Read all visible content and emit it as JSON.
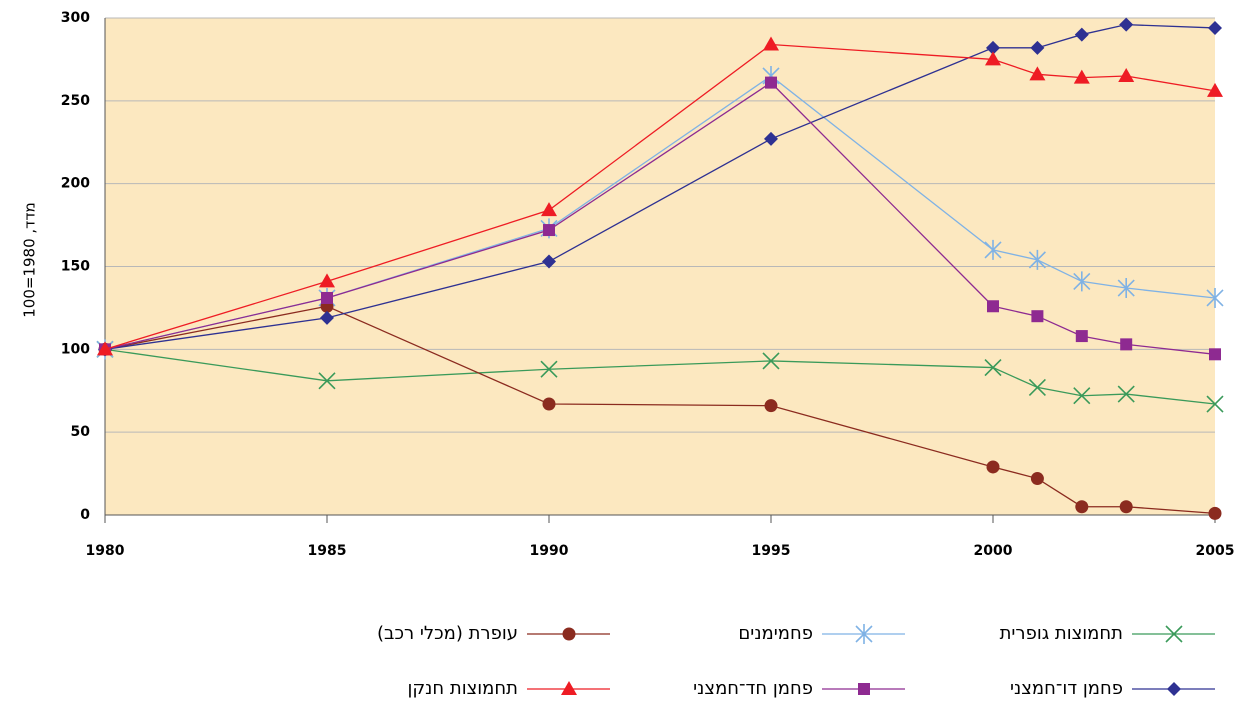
{
  "chart_data": {
    "type": "line",
    "y_label": "מדד, 1980=100",
    "x": [
      1980,
      1985,
      1990,
      1995,
      2000,
      2001,
      2002,
      2003,
      2005
    ],
    "xlim": [
      1980,
      2005
    ],
    "xticks": [
      1980,
      1985,
      1990,
      1995,
      2000,
      2005
    ],
    "ylim": [
      0,
      300
    ],
    "yticks": [
      0,
      50,
      100,
      150,
      200,
      250,
      300
    ],
    "grid": true,
    "legend": "bottom",
    "series": [
      {
        "name": "תחמוצות גופרית",
        "color": "#3a9a5a",
        "marker": "x",
        "values": [
          100,
          81,
          88,
          93,
          89,
          77,
          72,
          73,
          67
        ]
      },
      {
        "name": "פחמימנים",
        "color": "#7fb2e5",
        "marker": "asterisk",
        "values": [
          100,
          131,
          173,
          265,
          160,
          154,
          141,
          137,
          131
        ]
      },
      {
        "name": "עופרת (מכלי רכב)",
        "color": "#8b2b1f",
        "marker": "circle",
        "values": [
          100,
          126,
          67,
          66,
          29,
          22,
          5,
          5,
          1
        ]
      },
      {
        "name": "פחמן דו־חמצני",
        "color": "#2e3192",
        "marker": "diamond",
        "values": [
          100,
          119,
          153,
          227,
          282,
          282,
          290,
          296,
          294
        ]
      },
      {
        "name": "פחמן חד־חמצני",
        "color": "#8e2a91",
        "marker": "square",
        "values": [
          100,
          131,
          172,
          261,
          126,
          120,
          108,
          103,
          97
        ]
      },
      {
        "name": "תחמוצות חנקן",
        "color": "#ee1c24",
        "marker": "triangle",
        "values": [
          100,
          141,
          184,
          284,
          275,
          266,
          264,
          265,
          256
        ]
      }
    ]
  }
}
